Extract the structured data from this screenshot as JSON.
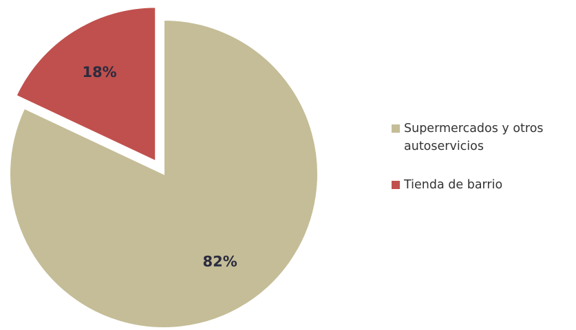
{
  "chart_data": {
    "type": "pie",
    "slices": [
      {
        "label": "Supermercados y otros autoservicios",
        "legend_lines": [
          "Supermercados y otros",
          "autoservicios"
        ],
        "value": 82,
        "value_label": "82%",
        "color": "#c4bd97",
        "exploded": false
      },
      {
        "label": "Tienda de barrio",
        "legend_lines": [
          "Tienda de barrio"
        ],
        "value": 18,
        "value_label": "18%",
        "color": "#c0504d",
        "exploded": true
      }
    ],
    "legend_position": "right",
    "start_angle_deg": 0,
    "direction": "clockwise"
  }
}
